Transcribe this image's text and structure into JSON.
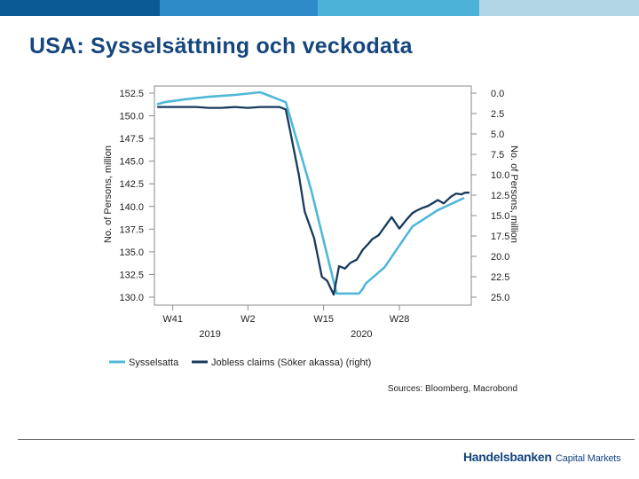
{
  "header": {
    "title": "USA: Sysselsättning och veckodata",
    "bar_colors": [
      "#0b5a96",
      "#2e8bc8",
      "#4db2d8",
      "#b3d6e6"
    ]
  },
  "chart_data": {
    "type": "line",
    "xlabel": "",
    "ylabel_left": "No. of Persons, million",
    "ylabel_right": "No. of Persons, million",
    "ylim_left": [
      130.0,
      152.5
    ],
    "ylim_right": [
      25.0,
      0.0
    ],
    "right_axis_inverted": true,
    "yticks_left": [
      "152.5",
      "150.0",
      "147.5",
      "145.0",
      "142.5",
      "140.0",
      "137.5",
      "135.0",
      "132.5",
      "130.0"
    ],
    "yticks_right": [
      "0.0",
      "2.5",
      "5.0",
      "7.5",
      "10.0",
      "12.5",
      "15.0",
      "17.5",
      "20.0",
      "22.5",
      "25.0"
    ],
    "xticks": [
      "W41",
      "W2",
      "W15",
      "W28"
    ],
    "year_labels": [
      "2019",
      "2020"
    ],
    "series": [
      {
        "name": "Sysselsatta",
        "axis": "left",
        "color": "#4fb8d8",
        "x": [
          0,
          1.1,
          4.3,
          8.6,
          13.0,
          17.3,
          21.6,
          25.9,
          30.2,
          34.0,
          34.7,
          35.1,
          38.3,
          43.0,
          47.3,
          51.6
        ],
        "y": [
          151.3,
          151.5,
          151.8,
          152.1,
          152.3,
          152.6,
          151.5,
          141.8,
          130.4,
          130.4,
          131.0,
          131.5,
          133.3,
          137.8,
          139.6,
          140.9
        ]
      },
      {
        "name": "Jobless claims (Söker akassa) (right)",
        "axis": "right",
        "color": "#173a5c",
        "x": [
          0,
          2.2,
          4.3,
          6.5,
          8.6,
          10.8,
          13.0,
          15.2,
          17.3,
          19.5,
          20.5,
          21.6,
          22.3,
          23.8,
          24.8,
          26.4,
          27.7,
          28.6,
          29.7,
          30.6,
          31.6,
          32.5,
          33.6,
          34.6,
          35.5,
          36.2,
          37.3,
          38.6,
          39.5,
          40.8,
          41.9,
          43.0,
          43.7,
          44.6,
          45.7,
          47.3,
          48.3,
          49.5,
          50.4,
          51.3,
          51.9,
          52.5
        ],
        "y": [
          1.7,
          1.7,
          1.7,
          1.7,
          1.8,
          1.8,
          1.7,
          1.8,
          1.7,
          1.7,
          1.7,
          2.0,
          4.5,
          10.0,
          14.5,
          17.8,
          22.5,
          23.0,
          24.7,
          21.2,
          21.5,
          20.8,
          20.4,
          19.2,
          18.5,
          17.9,
          17.4,
          16.1,
          15.2,
          16.6,
          15.6,
          14.7,
          14.4,
          14.1,
          13.8,
          13.1,
          13.5,
          12.7,
          12.3,
          12.4,
          12.2,
          12.2
        ]
      }
    ],
    "legend_position": "bottom-left",
    "grid": false,
    "source": "Sources: Bloomberg, Macrobond"
  },
  "footer": {
    "brand_name": "Handelsbanken",
    "brand_suffix": "Capital Markets"
  }
}
